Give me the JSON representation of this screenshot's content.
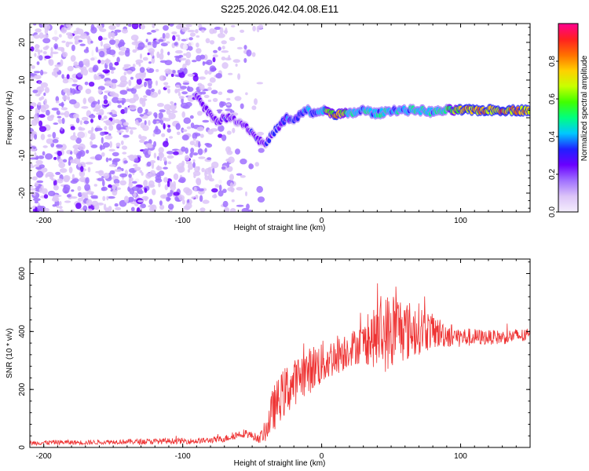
{
  "title": "S225.2026.042.04.08.E11",
  "chart_data": [
    {
      "type": "heatmap",
      "title": "S225.2026.042.04.08.E11",
      "xlabel": "Height of straight line (km)",
      "ylabel": "Frequency (Hz)",
      "xlim": [
        -210,
        150
      ],
      "ylim": [
        -25,
        25
      ],
      "xticks": [
        -200,
        -100,
        0,
        100
      ],
      "xtick_labels": [
        "-200",
        "-100",
        "0",
        "100"
      ],
      "yticks": [
        -20,
        -10,
        0,
        10,
        20
      ],
      "ytick_labels": [
        "-20",
        "-10",
        "0",
        "10",
        "20"
      ],
      "colorbar": {
        "label": "Normalized spectral amplitude",
        "range": [
          0,
          1
        ],
        "ticks": [
          0.0,
          0.2,
          0.4,
          0.6,
          0.8
        ],
        "tick_labels": [
          "0.0",
          "0.2",
          "0.4",
          "0.6",
          "0.8"
        ],
        "colors": [
          "#f4eefc",
          "#dcc4f8",
          "#a070ff",
          "#6a00ff",
          "#2020ff",
          "#00c8ff",
          "#00ff80",
          "#40ff00",
          "#c8ff00",
          "#ffd000",
          "#ff7000",
          "#ff2020",
          "#ff0090"
        ]
      },
      "noise_region_x": [
        -210,
        -55
      ],
      "ridge": {
        "x": [
          -90,
          -85,
          -80,
          -75,
          -70,
          -65,
          -60,
          -55,
          -50,
          -45,
          -40,
          -35,
          -30,
          -25,
          -20,
          -15,
          -10,
          -5,
          0,
          10,
          20,
          30,
          40,
          50,
          60,
          70,
          80,
          90,
          100,
          110,
          120,
          130,
          140,
          150
        ],
        "y": [
          6,
          3,
          1,
          -1,
          0,
          0,
          -1,
          -2,
          -4,
          -6,
          -7,
          -4,
          -2,
          0,
          -1,
          1,
          2,
          1,
          2,
          1,
          1,
          2,
          1,
          2,
          2,
          2,
          1.5,
          2,
          2,
          2,
          2,
          2,
          2,
          2
        ],
        "amplitude": [
          0.3,
          0.3,
          0.25,
          0.3,
          0.3,
          0.3,
          0.25,
          0.3,
          0.3,
          0.3,
          0.3,
          0.35,
          0.35,
          0.4,
          0.35,
          0.4,
          0.45,
          0.4,
          0.5,
          0.9,
          0.55,
          0.5,
          0.5,
          0.5,
          0.5,
          0.55,
          0.5,
          0.55,
          0.9,
          0.9,
          0.9,
          0.9,
          0.9,
          0.9
        ]
      }
    },
    {
      "type": "line",
      "xlabel": "Height of straight line (km)",
      "ylabel": "SNR (10 * v/v)",
      "xlim": [
        -210,
        150
      ],
      "ylim": [
        0,
        650
      ],
      "xticks": [
        -200,
        -100,
        0,
        100
      ],
      "xtick_labels": [
        "-200",
        "-100",
        "0",
        "100"
      ],
      "yticks": [
        0,
        200,
        400,
        600
      ],
      "ytick_labels": [
        "0",
        "200",
        "400",
        "600"
      ],
      "series": [
        {
          "name": "SNR",
          "color": "#ee3333",
          "x": [
            -210,
            -190,
            -170,
            -150,
            -130,
            -110,
            -90,
            -80,
            -70,
            -60,
            -55,
            -50,
            -45,
            -40,
            -35,
            -30,
            -25,
            -20,
            -15,
            -10,
            -5,
            0,
            5,
            10,
            15,
            20,
            30,
            40,
            50,
            55,
            60,
            70,
            80,
            90,
            100,
            110,
            120,
            130,
            140,
            150
          ],
          "values": [
            15,
            18,
            17,
            20,
            20,
            22,
            22,
            25,
            30,
            45,
            50,
            40,
            30,
            60,
            130,
            170,
            200,
            220,
            250,
            260,
            280,
            290,
            300,
            320,
            330,
            340,
            360,
            380,
            400,
            420,
            400,
            410,
            400,
            390,
            380,
            380,
            380,
            380,
            385,
            385
          ],
          "spread": [
            8,
            8,
            8,
            8,
            10,
            10,
            10,
            10,
            12,
            14,
            15,
            14,
            15,
            40,
            80,
            80,
            90,
            80,
            80,
            80,
            80,
            80,
            70,
            70,
            70,
            60,
            70,
            110,
            150,
            120,
            110,
            90,
            60,
            45,
            35,
            30,
            25,
            25,
            25,
            25
          ]
        }
      ]
    }
  ]
}
